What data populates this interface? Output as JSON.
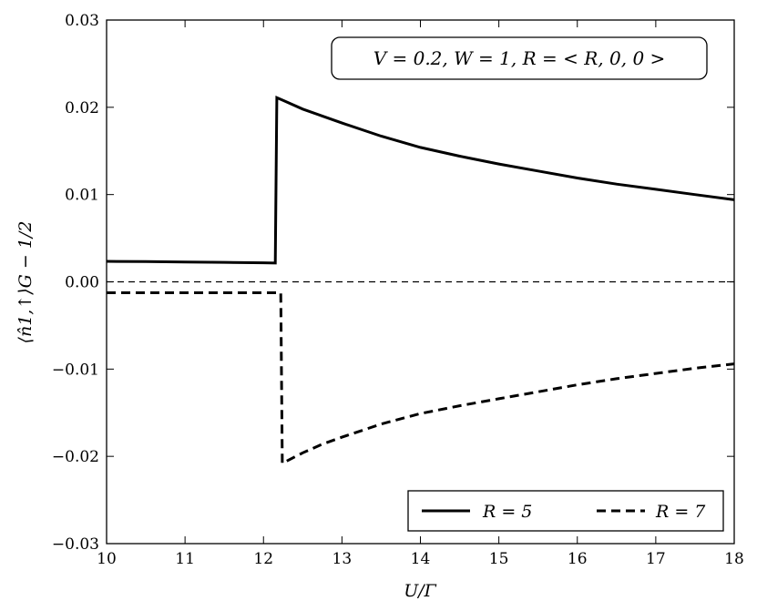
{
  "chart_data": {
    "type": "line",
    "xlabel": "U/Γ",
    "ylabel": "⟨n̂1,↑⟩G − 1/2",
    "xlim": [
      10,
      18
    ],
    "ylim": [
      -0.03,
      0.03
    ],
    "x_ticks": [
      10,
      11,
      12,
      13,
      14,
      15,
      16,
      17,
      18
    ],
    "x_tick_labels": [
      "10",
      "11",
      "12",
      "13",
      "14",
      "15",
      "16",
      "17",
      "18"
    ],
    "y_ticks": [
      -0.03,
      -0.02,
      -0.01,
      0.0,
      0.01,
      0.02,
      0.03
    ],
    "y_tick_labels": [
      "−0.03",
      "−0.02",
      "−0.01",
      "0.00",
      "0.01",
      "0.02",
      "0.03"
    ],
    "grid": false,
    "annotation": "V = 0.2, W = 1, R = < R, 0, 0 >",
    "annotation_position": "top-right",
    "reference_line": {
      "y": 0.0,
      "style": "dashed"
    },
    "legend": {
      "position": "bottom-right"
    },
    "series": [
      {
        "name": "R = 5",
        "style": "solid",
        "color": "#000000",
        "points": [
          [
            10.0,
            0.00235
          ],
          [
            10.5,
            0.00232
          ],
          [
            11.0,
            0.00228
          ],
          [
            11.5,
            0.00223
          ],
          [
            12.0,
            0.00218
          ],
          [
            12.15,
            0.00215
          ],
          [
            12.17,
            0.0211
          ],
          [
            12.25,
            0.0208
          ],
          [
            12.5,
            0.0198
          ],
          [
            12.75,
            0.019
          ],
          [
            13.0,
            0.0182
          ],
          [
            13.5,
            0.0167
          ],
          [
            14.0,
            0.0154
          ],
          [
            14.5,
            0.0144
          ],
          [
            15.0,
            0.0135
          ],
          [
            15.5,
            0.0127
          ],
          [
            16.0,
            0.0119
          ],
          [
            16.5,
            0.0112
          ],
          [
            17.0,
            0.0106
          ],
          [
            17.5,
            0.01
          ],
          [
            18.0,
            0.0094
          ]
        ]
      },
      {
        "name": "R = 7",
        "style": "dashed",
        "color": "#000000",
        "points": [
          [
            10.0,
            -0.00125
          ],
          [
            10.5,
            -0.00125
          ],
          [
            11.0,
            -0.00125
          ],
          [
            11.5,
            -0.00125
          ],
          [
            12.0,
            -0.00125
          ],
          [
            12.22,
            -0.00125
          ],
          [
            12.24,
            -0.0208
          ],
          [
            12.5,
            -0.0196
          ],
          [
            12.75,
            -0.0186
          ],
          [
            13.0,
            -0.0178
          ],
          [
            13.5,
            -0.0163
          ],
          [
            14.0,
            -0.0151
          ],
          [
            14.5,
            -0.0142
          ],
          [
            15.0,
            -0.0134
          ],
          [
            15.5,
            -0.0126
          ],
          [
            16.0,
            -0.0118
          ],
          [
            16.5,
            -0.0111
          ],
          [
            17.0,
            -0.0105
          ],
          [
            17.5,
            -0.0099
          ],
          [
            18.0,
            -0.0094
          ]
        ]
      }
    ]
  }
}
